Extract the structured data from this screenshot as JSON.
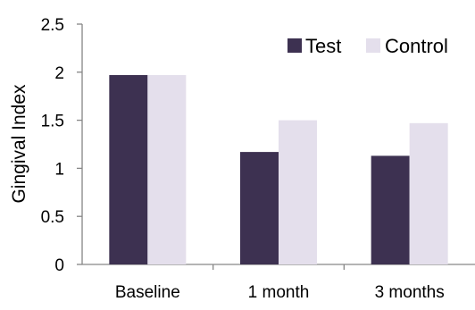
{
  "chart_data": {
    "type": "bar",
    "categories": [
      "Baseline",
      "1 month",
      "3 months"
    ],
    "series": [
      {
        "name": "Test",
        "color": "#3d3151",
        "values": [
          1.97,
          1.17,
          1.13
        ]
      },
      {
        "name": "Control",
        "color": "#e4dfec",
        "values": [
          1.97,
          1.5,
          1.47
        ]
      }
    ],
    "title": "",
    "xlabel": "",
    "ylabel": "Gingival Index",
    "ylim": [
      0,
      2.5
    ],
    "yticks": [
      "0",
      "0.5",
      "1",
      "1.5",
      "2",
      "2.5"
    ],
    "grid": false,
    "legend": "top-right",
    "axis_color": "#868686"
  }
}
